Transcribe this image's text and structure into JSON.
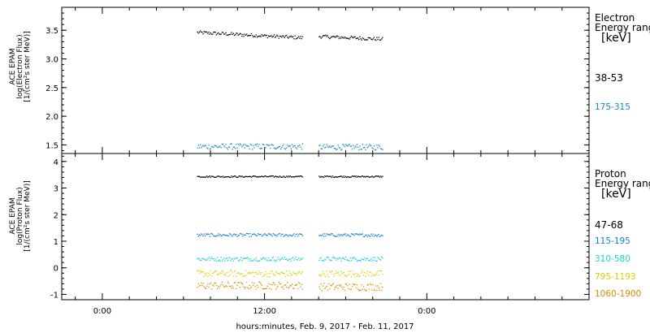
{
  "chart_data": [
    {
      "type": "scatter",
      "panel": "electron",
      "ylabel": [
        "ACE EPAM",
        "log(Electron Flux)",
        "[1/(cm²s ster MeV)]"
      ],
      "ylim": [
        1.35,
        3.9
      ],
      "yticks": [
        1.5,
        2.0,
        2.5,
        3.0,
        3.5
      ],
      "ytick_labels": [
        "1.5",
        "2.0",
        "2.5",
        "3.0",
        "3.5"
      ],
      "legend_title": [
        "Electron",
        "Energy range"
      ],
      "legend_units": "[keV]",
      "series": [
        {
          "name": "38-53",
          "color": "#000000",
          "segments": [
            [
              7.0,
              14.8
            ],
            [
              16.0,
              20.7
            ]
          ],
          "values": [
            3.47,
            3.34
          ],
          "noise": 0.03
        },
        {
          "name": "175-315",
          "color": "#1a7fd6",
          "segments": [
            [
              7.0,
              14.8
            ],
            [
              16.0,
              20.7
            ]
          ],
          "values": [
            1.48,
            1.47
          ],
          "noise": 0.05
        }
      ]
    },
    {
      "type": "scatter",
      "panel": "proton",
      "ylabel": [
        "ACE EPAM",
        "log(Proton Flux)",
        "[1/(cm²s ster MeV)]"
      ],
      "ylim": [
        -1.2,
        4.3
      ],
      "yticks": [
        -1,
        0,
        1,
        2,
        3,
        4
      ],
      "ytick_labels": [
        "-1",
        "0",
        "1",
        "2",
        "3",
        "4"
      ],
      "legend_title": [
        "Proton",
        "Energy range"
      ],
      "legend_units": "[keV]",
      "series": [
        {
          "name": "47-68",
          "color": "#000000",
          "segments": [
            [
              7.0,
              14.8
            ],
            [
              16.0,
              20.7
            ]
          ],
          "values": [
            3.45,
            3.45
          ],
          "noise": 0.03
        },
        {
          "name": "115-195",
          "color": "#1a7fd6",
          "segments": [
            [
              7.0,
              14.8
            ],
            [
              16.0,
              20.7
            ]
          ],
          "values": [
            1.25,
            1.25
          ],
          "noise": 0.06
        },
        {
          "name": "310-580",
          "color": "#1fd0d0",
          "segments": [
            [
              7.0,
              14.8
            ],
            [
              16.0,
              20.7
            ]
          ],
          "values": [
            0.35,
            0.35
          ],
          "noise": 0.08
        },
        {
          "name": "795-1193",
          "color": "#d4d400",
          "segments": [
            [
              7.0,
              14.8
            ],
            [
              16.0,
              20.7
            ]
          ],
          "values": [
            -0.2,
            -0.2
          ],
          "noise": 0.12
        },
        {
          "name": "1060-1900",
          "color": "#e08a00",
          "segments": [
            [
              7.0,
              14.8
            ],
            [
              16.0,
              20.7
            ]
          ],
          "values": [
            -0.65,
            -0.7
          ],
          "noise": 0.14
        }
      ]
    }
  ],
  "x_axis": {
    "xlim": [
      -3,
      36
    ],
    "major_ticks": [
      0,
      12,
      24
    ],
    "tick_labels": [
      "0:00",
      "12:00",
      "0:00"
    ],
    "minor_step": 2,
    "label": "hours:minutes, Feb.  9, 2017 - Feb. 11, 2017"
  }
}
